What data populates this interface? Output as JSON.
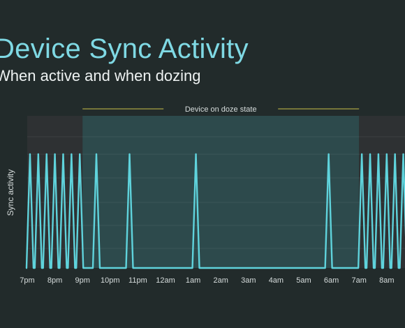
{
  "header": {
    "title": "Device Sync Activity",
    "subtitle": "When active and when dozing"
  },
  "chart_data": {
    "type": "line",
    "title": "Device Sync Activity",
    "subtitle": "When active and when dozing",
    "ylabel": "Sync activity",
    "xlabel": "",
    "x_ticks": [
      "7pm",
      "8pm",
      "9pm",
      "10pm",
      "11pm",
      "12am",
      "1am",
      "2am",
      "3am",
      "4am",
      "5am",
      "6am",
      "7am",
      "8am"
    ],
    "doze_annotation": "Device on doze state",
    "doze_range": [
      "9pm",
      "7am"
    ],
    "grid": true,
    "series": [
      {
        "color": "#5fd3dc",
        "spikes_hours_since_7pm": [
          0.1,
          0.4,
          0.7,
          1.0,
          1.3,
          1.6,
          1.9,
          2.5,
          3.7,
          6.1,
          10.9,
          12.1,
          12.4,
          12.7,
          13.0,
          13.3,
          13.6
        ],
        "spike_height": 1.0
      }
    ],
    "colors": {
      "line": "#5fd3dc",
      "doze_region": "#2d4a4c",
      "active_region": "#2e3133",
      "annotation": "#c9c04a"
    }
  }
}
